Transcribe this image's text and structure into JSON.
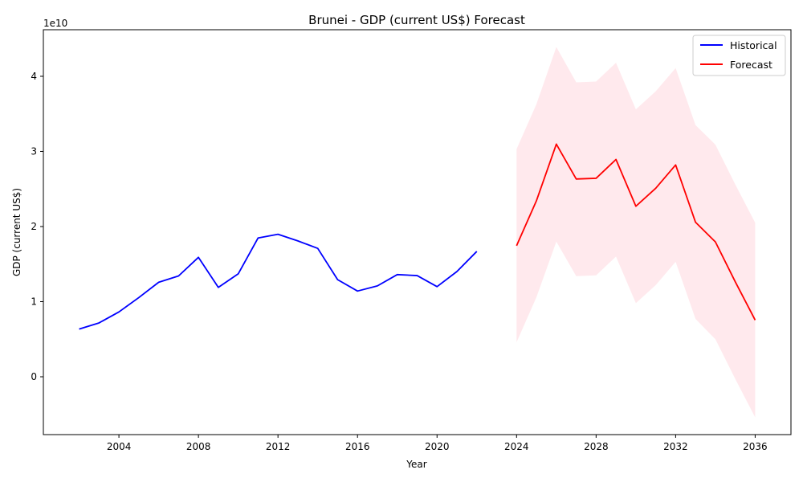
{
  "chart_data": {
    "type": "line",
    "title": "Brunei - GDP (current US$) Forecast",
    "xlabel": "Year",
    "ylabel": "GDP (current US$)",
    "y_offset_label": "1e10",
    "xlim": [
      2000.2,
      2037.8
    ],
    "ylim": [
      -0.77,
      4.62
    ],
    "x_ticks": [
      2004,
      2008,
      2012,
      2016,
      2020,
      2024,
      2028,
      2032,
      2036
    ],
    "y_ticks": [
      0,
      1,
      2,
      3,
      4
    ],
    "grid": false,
    "legend_position": "top-right",
    "series": [
      {
        "name": "Historical",
        "color": "#0000ff",
        "x": [
          2002,
          2003,
          2004,
          2005,
          2006,
          2007,
          2008,
          2009,
          2010,
          2011,
          2012,
          2013,
          2014,
          2015,
          2016,
          2017,
          2018,
          2019,
          2020,
          2021,
          2022
        ],
        "y": [
          0.635,
          0.717,
          0.863,
          1.054,
          1.258,
          1.342,
          1.59,
          1.19,
          1.37,
          1.848,
          1.897,
          1.809,
          1.709,
          1.293,
          1.141,
          1.21,
          1.36,
          1.347,
          1.2,
          1.401,
          1.669
        ]
      },
      {
        "name": "Forecast",
        "color": "#ff0000",
        "x": [
          2024,
          2025,
          2026,
          2027,
          2028,
          2029,
          2030,
          2031,
          2032,
          2033,
          2034,
          2035,
          2036
        ],
        "y": [
          1.745,
          2.344,
          3.097,
          2.633,
          2.642,
          2.893,
          2.27,
          2.51,
          2.82,
          2.057,
          1.795,
          1.264,
          0.755
        ]
      }
    ],
    "confidence_band": {
      "color": "#ffc0cb",
      "x": [
        2024,
        2025,
        2026,
        2027,
        2028,
        2029,
        2030,
        2031,
        2032,
        2033,
        2034,
        2035,
        2036
      ],
      "lower": [
        0.46,
        1.06,
        1.8,
        1.34,
        1.35,
        1.6,
        0.98,
        1.22,
        1.53,
        0.77,
        0.5,
        -0.03,
        -0.54
      ],
      "upper": [
        3.03,
        3.63,
        4.39,
        3.92,
        3.93,
        4.18,
        3.56,
        3.8,
        4.11,
        3.35,
        3.09,
        2.56,
        2.05
      ]
    }
  }
}
